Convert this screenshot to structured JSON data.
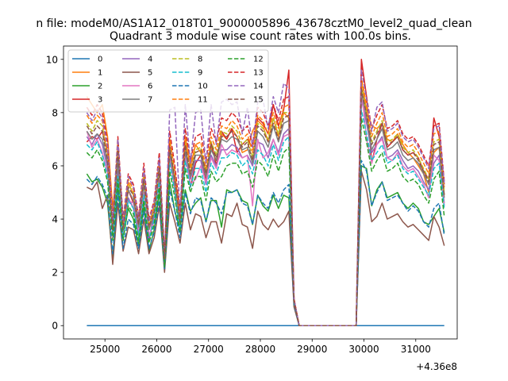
{
  "suptitle": "n file: modeM0/AS1A12_018T01_9000005896_43678cztM0_level2_quad_clean",
  "chart_data": {
    "type": "line",
    "title": "Quadrant 3 module wise count rates with 100.0s bins.",
    "xlabel": "",
    "ylabel": "",
    "x_offset_text": "+4.36e8",
    "xlim": [
      24200,
      31800
    ],
    "ylim": [
      -0.5,
      10.5
    ],
    "xticks": [
      25000,
      26000,
      27000,
      28000,
      29000,
      30000,
      31000
    ],
    "yticks": [
      0,
      2,
      4,
      6,
      8,
      10
    ],
    "legend_position": "upper-left",
    "legend_columns": 4,
    "x": [
      24650,
      24750,
      24850,
      24950,
      25050,
      25150,
      25250,
      25350,
      25450,
      25550,
      25650,
      25750,
      25850,
      25950,
      26050,
      26150,
      26250,
      26350,
      26450,
      26550,
      26650,
      26750,
      26850,
      26950,
      27050,
      27150,
      27250,
      27350,
      27450,
      27550,
      27650,
      27750,
      27850,
      27950,
      28050,
      28150,
      28250,
      28350,
      28450,
      28550,
      28650,
      28750,
      28850,
      28950,
      29050,
      29150,
      29250,
      29350,
      29450,
      29550,
      29650,
      29750,
      29850,
      29950,
      30050,
      30150,
      30250,
      30350,
      30450,
      30550,
      30650,
      30750,
      30850,
      30950,
      31050,
      31150,
      31250,
      31350,
      31450,
      31550
    ],
    "series": [
      {
        "name": "0",
        "color": "#1f77b4",
        "dash": "solid",
        "values": [
          0,
          0,
          0,
          0,
          0,
          0,
          0,
          0,
          0,
          0,
          0,
          0,
          0,
          0,
          0,
          0,
          0,
          0,
          0,
          0,
          0,
          0,
          0,
          0,
          0,
          0,
          0,
          0,
          0,
          0,
          0,
          0,
          0,
          0,
          0,
          0,
          0,
          0,
          0,
          0,
          0,
          0,
          0,
          0,
          0,
          0,
          0,
          0,
          0,
          0,
          0,
          0,
          0,
          0,
          0,
          0,
          0,
          0,
          0,
          0,
          0,
          0,
          0,
          0,
          0,
          0,
          0,
          0,
          0,
          0
        ]
      },
      {
        "name": "1",
        "color": "#ff7f0e",
        "dash": "solid",
        "values": [
          8.6,
          8.3,
          8.0,
          8.3,
          7.1,
          4.4,
          6.4,
          3.8,
          5.4,
          4.9,
          3.9,
          5.6,
          3.6,
          4.6,
          6.0,
          2.6,
          7.0,
          5.2,
          4.0,
          7.1,
          6.0,
          6.8,
          6.5,
          5.8,
          6.7,
          6.2,
          7.2,
          7.0,
          7.4,
          7.1,
          6.5,
          6.6,
          7.3,
          7.7,
          7.5,
          6.9,
          7.8,
          7.1,
          8.0,
          7.8,
          1.0,
          0,
          0,
          0,
          0,
          0,
          0,
          0,
          0,
          0,
          0,
          0,
          0,
          9.2,
          8.1,
          7.5,
          7.4,
          7.6,
          7.0,
          6.9,
          7.2,
          6.8,
          6.5,
          6.3,
          6.0,
          5.7,
          5.0,
          6.5,
          6.7,
          4.9
        ]
      },
      {
        "name": "2",
        "color": "#2ca02c",
        "dash": "solid",
        "values": [
          5.7,
          5.4,
          5.5,
          5.2,
          4.6,
          2.5,
          5.2,
          3.3,
          4.4,
          4.0,
          3.0,
          4.5,
          2.8,
          3.6,
          5.0,
          2.3,
          5.4,
          4.3,
          3.6,
          5.1,
          4.3,
          4.6,
          4.8,
          3.9,
          4.7,
          4.7,
          3.7,
          5.1,
          5.0,
          5.1,
          4.7,
          4.6,
          3.8,
          4.9,
          4.5,
          4.3,
          4.9,
          4.4,
          4.9,
          4.8,
          0.8,
          0,
          0,
          0,
          0,
          0,
          0,
          0,
          0,
          0,
          0,
          0,
          0,
          6.0,
          5.9,
          4.5,
          5.1,
          5.4,
          4.8,
          4.9,
          5.0,
          4.6,
          4.4,
          4.6,
          4.4,
          3.9,
          3.8,
          4.1,
          4.4,
          3.5
        ]
      },
      {
        "name": "3",
        "color": "#d62728",
        "dash": "solid",
        "values": [
          6.9,
          7.1,
          7.0,
          7.3,
          6.5,
          3.5,
          6.3,
          3.6,
          5.1,
          4.6,
          3.7,
          5.4,
          3.2,
          4.2,
          6.1,
          2.2,
          6.8,
          5.4,
          4.0,
          6.9,
          5.2,
          6.1,
          6.4,
          5.5,
          6.9,
          6.0,
          7.3,
          7.0,
          7.4,
          6.5,
          6.8,
          7.0,
          6.7,
          7.8,
          7.6,
          7.2,
          8.3,
          7.5,
          8.1,
          9.6,
          1.0,
          0,
          0,
          0,
          0,
          0,
          0,
          0,
          0,
          0,
          0,
          0,
          0,
          10.0,
          8.6,
          6.1,
          7.0,
          7.6,
          6.7,
          6.9,
          7.1,
          6.6,
          6.4,
          6.5,
          6.3,
          5.8,
          5.5,
          7.8,
          7.1,
          5.3
        ]
      },
      {
        "name": "4",
        "color": "#9467bd",
        "dash": "solid",
        "values": [
          7.1,
          6.8,
          7.2,
          6.8,
          5.9,
          3.6,
          5.8,
          3.4,
          4.8,
          4.4,
          3.4,
          5.0,
          3.3,
          4.1,
          5.6,
          2.2,
          6.4,
          5.2,
          3.5,
          6.5,
          5.5,
          6.2,
          6.2,
          5.3,
          6.4,
          6.0,
          6.6,
          6.6,
          6.8,
          6.7,
          6.3,
          6.4,
          6.0,
          6.9,
          6.8,
          6.3,
          7.0,
          6.5,
          7.2,
          7.4,
          0.9,
          0,
          0,
          0,
          0,
          0,
          0,
          0,
          0,
          0,
          0,
          0,
          0,
          8.5,
          7.6,
          6.5,
          6.8,
          7.1,
          6.3,
          6.4,
          6.6,
          6.2,
          5.9,
          6.0,
          5.8,
          5.4,
          5.1,
          6.1,
          6.4,
          4.6
        ]
      },
      {
        "name": "5",
        "color": "#8c564b",
        "dash": "solid",
        "values": [
          5.2,
          5.1,
          5.4,
          4.4,
          4.9,
          2.3,
          4.6,
          2.8,
          3.7,
          3.6,
          2.7,
          4.0,
          2.7,
          3.3,
          4.5,
          2.0,
          4.6,
          3.9,
          3.1,
          4.6,
          3.6,
          4.2,
          4.1,
          3.3,
          3.9,
          3.9,
          3.1,
          4.2,
          4.1,
          4.6,
          3.8,
          3.7,
          2.9,
          4.3,
          3.8,
          3.6,
          4.0,
          3.7,
          3.9,
          4.3,
          0.7,
          0,
          0,
          0,
          0,
          0,
          0,
          0,
          0,
          0,
          0,
          0,
          0,
          5.8,
          5.1,
          3.9,
          4.1,
          4.6,
          4.0,
          4.1,
          4.2,
          3.9,
          3.7,
          3.8,
          3.6,
          3.4,
          3.2,
          4.1,
          3.7,
          3.0
        ]
      },
      {
        "name": "6",
        "color": "#e377c2",
        "dash": "solid",
        "values": [
          7.3,
          6.7,
          7.0,
          6.5,
          5.7,
          3.3,
          5.6,
          3.5,
          4.7,
          4.6,
          3.6,
          5.0,
          3.4,
          3.9,
          5.5,
          2.5,
          6.3,
          5.1,
          3.6,
          6.3,
          5.3,
          5.5,
          6.0,
          5.4,
          6.3,
          5.9,
          6.8,
          6.4,
          6.6,
          6.5,
          6.3,
          6.4,
          4.5,
          7.0,
          6.3,
          6.5,
          7.0,
          6.4,
          7.1,
          7.2,
          0.9,
          0,
          0,
          0,
          0,
          0,
          0,
          0,
          0,
          0,
          0,
          0,
          0,
          8.9,
          7.0,
          6.1,
          6.8,
          7.0,
          6.3,
          6.2,
          6.5,
          6.0,
          5.8,
          5.9,
          5.6,
          5.3,
          4.8,
          6.4,
          6.2,
          4.5
        ]
      },
      {
        "name": "7",
        "color": "#7f7f7f",
        "dash": "solid",
        "values": [
          7.3,
          7.0,
          7.2,
          7.0,
          6.1,
          3.5,
          6.2,
          3.6,
          5.1,
          4.7,
          3.7,
          5.3,
          3.6,
          4.2,
          5.8,
          2.4,
          6.5,
          5.3,
          3.8,
          6.6,
          5.6,
          6.4,
          6.4,
          5.6,
          6.6,
          6.2,
          7.0,
          6.9,
          7.1,
          7.0,
          6.6,
          6.7,
          6.1,
          7.3,
          7.1,
          6.7,
          7.5,
          6.9,
          7.6,
          7.7,
          0.9,
          0,
          0,
          0,
          0,
          0,
          0,
          0,
          0,
          0,
          0,
          0,
          0,
          8.8,
          7.8,
          6.6,
          7.0,
          7.4,
          6.6,
          6.7,
          6.9,
          6.4,
          6.2,
          6.3,
          6.1,
          5.7,
          5.3,
          6.6,
          6.7,
          4.8
        ]
      },
      {
        "name": "8",
        "color": "#bcbd22",
        "dash": "dashed",
        "values": [
          7.6,
          7.3,
          7.7,
          7.5,
          6.3,
          3.6,
          6.9,
          3.7,
          5.3,
          5.0,
          3.9,
          5.7,
          3.7,
          4.4,
          6.0,
          2.5,
          6.8,
          5.6,
          4.0,
          6.9,
          5.8,
          6.6,
          6.7,
          5.8,
          6.9,
          6.4,
          7.3,
          7.2,
          7.5,
          7.3,
          6.8,
          7.0,
          6.3,
          7.6,
          7.4,
          7.0,
          7.8,
          7.2,
          8.0,
          8.0,
          0.9,
          0,
          0,
          0,
          0,
          0,
          0,
          0,
          0,
          0,
          0,
          0,
          0,
          9.0,
          8.0,
          6.9,
          7.3,
          7.7,
          6.9,
          7.0,
          7.2,
          6.7,
          6.5,
          6.6,
          6.3,
          5.9,
          5.5,
          6.9,
          7.0,
          5.0
        ]
      },
      {
        "name": "9",
        "color": "#17becf",
        "dash": "dashed",
        "values": [
          6.8,
          6.6,
          6.9,
          6.4,
          5.6,
          3.4,
          5.6,
          3.3,
          4.7,
          4.4,
          3.3,
          4.9,
          3.2,
          4.0,
          5.4,
          2.2,
          6.1,
          5.0,
          3.5,
          6.2,
          5.2,
          5.9,
          5.9,
          5.0,
          6.1,
          5.7,
          6.3,
          6.3,
          6.5,
          6.4,
          6.0,
          6.2,
          5.7,
          6.6,
          6.4,
          6.0,
          6.8,
          6.2,
          6.9,
          7.1,
          0.9,
          0,
          0,
          0,
          0,
          0,
          0,
          0,
          0,
          0,
          0,
          0,
          0,
          8.1,
          7.2,
          6.2,
          6.5,
          6.8,
          6.1,
          6.2,
          6.4,
          5.9,
          5.7,
          5.8,
          5.5,
          5.2,
          4.9,
          5.9,
          6.1,
          4.4
        ]
      },
      {
        "name": "10",
        "color": "#1f77b4",
        "dash": "dashed",
        "values": [
          5.5,
          5.3,
          5.6,
          5.3,
          4.8,
          2.7,
          5.0,
          2.9,
          4.0,
          3.8,
          2.9,
          4.3,
          2.9,
          3.5,
          4.7,
          2.1,
          5.1,
          4.3,
          3.3,
          5.0,
          4.2,
          4.8,
          4.7,
          3.9,
          4.8,
          4.6,
          4.2,
          5.0,
          5.0,
          5.1,
          4.6,
          4.5,
          3.8,
          4.9,
          4.6,
          4.4,
          5.0,
          4.6,
          5.1,
          5.3,
          0.8,
          0,
          0,
          0,
          0,
          0,
          0,
          0,
          0,
          0,
          0,
          0,
          0,
          6.2,
          5.8,
          4.5,
          5.0,
          5.4,
          4.7,
          4.8,
          4.9,
          4.6,
          4.3,
          4.5,
          4.3,
          3.9,
          3.7,
          4.4,
          4.6,
          3.4
        ]
      },
      {
        "name": "11",
        "color": "#ff7f0e",
        "dash": "dashed",
        "values": [
          7.9,
          7.6,
          7.9,
          7.7,
          6.5,
          3.8,
          7.0,
          3.8,
          5.5,
          5.1,
          4.0,
          5.8,
          3.8,
          4.5,
          6.2,
          2.6,
          7.0,
          5.8,
          4.1,
          7.1,
          5.9,
          6.8,
          6.9,
          5.9,
          7.1,
          6.6,
          7.5,
          7.4,
          7.7,
          7.5,
          7.0,
          7.2,
          6.5,
          7.9,
          7.7,
          7.2,
          8.0,
          7.4,
          8.2,
          8.3,
          1.0,
          0,
          0,
          0,
          0,
          0,
          0,
          0,
          0,
          0,
          0,
          0,
          0,
          9.3,
          8.3,
          7.1,
          7.6,
          8.0,
          7.1,
          7.2,
          7.4,
          6.9,
          6.7,
          6.8,
          6.5,
          6.1,
          5.7,
          7.2,
          7.3,
          5.2
        ]
      },
      {
        "name": "12",
        "color": "#2ca02c",
        "dash": "dashed",
        "values": [
          6.5,
          6.3,
          6.6,
          6.2,
          5.4,
          3.2,
          5.5,
          3.2,
          4.5,
          4.2,
          3.2,
          4.7,
          3.1,
          3.8,
          5.2,
          2.2,
          5.8,
          4.8,
          3.5,
          5.9,
          5.0,
          5.6,
          5.6,
          4.7,
          5.8,
          5.4,
          5.6,
          6.0,
          6.1,
          6.1,
          5.7,
          5.8,
          5.2,
          6.2,
          6.0,
          5.6,
          6.4,
          5.8,
          6.5,
          6.7,
          0.9,
          0,
          0,
          0,
          0,
          0,
          0,
          0,
          0,
          0,
          0,
          0,
          0,
          7.8,
          6.9,
          5.8,
          6.2,
          6.5,
          5.8,
          5.9,
          6.1,
          5.6,
          5.4,
          5.5,
          5.3,
          4.9,
          4.6,
          5.5,
          5.8,
          4.1
        ]
      },
      {
        "name": "13",
        "color": "#d62728",
        "dash": "dashed",
        "values": [
          8.2,
          7.9,
          8.3,
          8.0,
          6.9,
          4.0,
          7.1,
          4.0,
          5.7,
          5.3,
          4.1,
          6.1,
          4.0,
          4.7,
          6.5,
          2.7,
          7.3,
          6.0,
          4.3,
          7.4,
          6.2,
          7.1,
          7.2,
          6.2,
          7.4,
          6.9,
          7.8,
          7.7,
          8.0,
          7.8,
          7.3,
          7.5,
          6.8,
          8.2,
          8.0,
          7.5,
          8.3,
          7.7,
          8.5,
          8.6,
          1.0,
          0,
          0,
          0,
          0,
          0,
          0,
          0,
          0,
          0,
          0,
          0,
          0,
          9.8,
          8.6,
          7.4,
          7.9,
          8.3,
          7.4,
          7.5,
          7.7,
          7.2,
          7.0,
          7.1,
          6.8,
          6.4,
          6.0,
          7.5,
          7.6,
          5.4
        ]
      },
      {
        "name": "14",
        "color": "#9467bd",
        "dash": "dashed",
        "values": [
          8.0,
          7.7,
          8.1,
          7.8,
          6.7,
          3.9,
          7.0,
          3.9,
          5.6,
          5.2,
          4.0,
          5.9,
          3.9,
          4.6,
          6.3,
          2.6,
          8.1,
          8.2,
          4.2,
          8.3,
          6.1,
          8.0,
          8.1,
          6.1,
          8.3,
          6.8,
          8.4,
          8.5,
          8.3,
          8.4,
          7.2,
          8.2,
          6.7,
          8.4,
          8.5,
          7.4,
          8.6,
          8.0,
          9.1,
          8.9,
          1.0,
          0,
          0,
          0,
          0,
          0,
          0,
          0,
          0,
          0,
          0,
          0,
          0,
          9.6,
          8.5,
          7.3,
          8.2,
          8.4,
          7.3,
          7.4,
          7.6,
          7.1,
          6.9,
          7.0,
          6.7,
          6.3,
          5.9,
          7.4,
          7.5,
          5.3
        ]
      },
      {
        "name": "15",
        "color": "#8c564b",
        "dash": "dashed",
        "values": [
          7.5,
          7.2,
          7.5,
          7.3,
          6.2,
          3.6,
          6.6,
          3.6,
          5.2,
          4.9,
          3.8,
          5.5,
          3.7,
          4.3,
          5.9,
          2.5,
          6.7,
          5.5,
          3.9,
          6.8,
          5.7,
          6.5,
          6.6,
          5.7,
          6.8,
          6.3,
          7.1,
          7.1,
          7.3,
          7.1,
          6.7,
          6.9,
          6.2,
          7.5,
          7.3,
          6.9,
          7.6,
          7.0,
          7.8,
          7.9,
          0.9,
          0,
          0,
          0,
          0,
          0,
          0,
          0,
          0,
          0,
          0,
          0,
          0,
          8.9,
          7.9,
          6.8,
          7.2,
          7.6,
          6.8,
          6.9,
          7.1,
          6.6,
          6.4,
          6.5,
          6.2,
          5.8,
          5.4,
          6.8,
          6.9,
          4.9
        ]
      }
    ]
  }
}
